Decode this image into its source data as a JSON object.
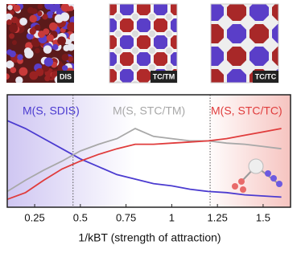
{
  "chart_data": {
    "type": "line",
    "panels": [
      "DIS",
      "TC/TM",
      "TC/TC"
    ],
    "x_label": "1/kBT (strength of attraction)",
    "x": [
      0.1,
      0.2,
      0.3,
      0.4,
      0.5,
      0.6,
      0.7,
      0.8,
      0.9,
      1.0,
      1.1,
      1.2,
      1.3,
      1.4,
      1.5,
      1.6
    ],
    "xlim": [
      0.1,
      1.65
    ],
    "xticks": [
      0.25,
      0.5,
      0.75,
      1,
      1.25,
      1.5
    ],
    "ylim": [
      0,
      1
    ],
    "transitions": [
      0.46,
      1.21
    ],
    "series": [
      {
        "name": "M(S, SDIS)",
        "color": "#4b3bd0",
        "values": [
          0.77,
          0.7,
          0.61,
          0.52,
          0.43,
          0.36,
          0.29,
          0.25,
          0.21,
          0.19,
          0.16,
          0.14,
          0.13,
          0.11,
          0.1,
          0.09
        ]
      },
      {
        "name": "M(S, STC/TM)",
        "color": "#a8a8a8",
        "values": [
          0.14,
          0.24,
          0.33,
          0.41,
          0.5,
          0.56,
          0.61,
          0.7,
          0.63,
          0.61,
          0.59,
          0.59,
          0.57,
          0.56,
          0.54,
          0.52
        ]
      },
      {
        "name": "M(S, STC/TC)",
        "color": "#e03c3c",
        "values": [
          0.07,
          0.13,
          0.24,
          0.34,
          0.41,
          0.47,
          0.52,
          0.56,
          0.56,
          0.57,
          0.58,
          0.59,
          0.61,
          0.64,
          0.67,
          0.7
        ]
      }
    ]
  }
}
